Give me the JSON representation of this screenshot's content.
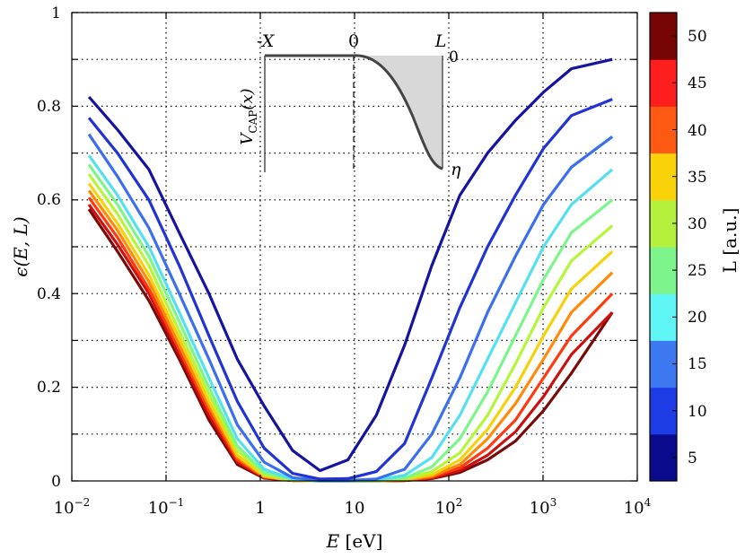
{
  "chart_data": {
    "type": "line",
    "xscale": "log",
    "xlim": [
      0.01,
      10000
    ],
    "ylim": [
      0,
      1
    ],
    "x_tick_labels": [
      {
        "base": "10",
        "exp": "−2",
        "value": 0.01
      },
      {
        "base": "10",
        "exp": "−1",
        "value": 0.1
      },
      {
        "base": "1",
        "exp": "",
        "value": 1
      },
      {
        "base": "10",
        "exp": "",
        "value": 10
      },
      {
        "base": "10",
        "exp": "2",
        "value": 100
      },
      {
        "base": "10",
        "exp": "3",
        "value": 1000
      },
      {
        "base": "10",
        "exp": "4",
        "value": 10000
      }
    ],
    "y_tick_labels": [
      {
        "label": "0",
        "value": 0
      },
      {
        "label": "0.2",
        "value": 0.2
      },
      {
        "label": "0.4",
        "value": 0.4
      },
      {
        "label": "0.6",
        "value": 0.6
      },
      {
        "label": "0.8",
        "value": 0.8
      },
      {
        "label": "1",
        "value": 1
      }
    ],
    "xlabel": {
      "symbol": "E",
      "unit": "[eV]"
    },
    "ylabel": "ϵ(E, L)",
    "grid": true,
    "x": [
      0.0152,
      0.0305,
      0.0658,
      0.138,
      0.285,
      0.57,
      1.1,
      2.2,
      4.3,
      8.5,
      17,
      34,
      66,
      131,
      258,
      510,
      1010,
      2000,
      5440
    ],
    "series": [
      {
        "name": "L = 5 a.u.",
        "L": 5,
        "color": "#1414a0",
        "values": [
          0.82,
          0.75,
          0.665,
          0.53,
          0.4,
          0.26,
          0.16,
          0.065,
          0.022,
          0.045,
          0.14,
          0.29,
          0.46,
          0.61,
          0.7,
          0.77,
          0.83,
          0.88,
          0.9
        ]
      },
      {
        "name": "L = 10 a.u.",
        "L": 10,
        "color": "#2233d6",
        "values": [
          0.775,
          0.7,
          0.6,
          0.46,
          0.31,
          0.17,
          0.07,
          0.016,
          0.004,
          0.005,
          0.02,
          0.08,
          0.22,
          0.37,
          0.5,
          0.61,
          0.71,
          0.78,
          0.815
        ]
      },
      {
        "name": "L = 15 a.u.",
        "L": 15,
        "color": "#3a6ff0",
        "values": [
          0.74,
          0.65,
          0.54,
          0.4,
          0.26,
          0.12,
          0.04,
          0.007,
          0.001,
          0.001,
          0.004,
          0.025,
          0.1,
          0.22,
          0.36,
          0.48,
          0.59,
          0.67,
          0.735
        ]
      },
      {
        "name": "L = 20 a.u.",
        "L": 20,
        "color": "#55e0f0",
        "values": [
          0.695,
          0.61,
          0.5,
          0.36,
          0.22,
          0.09,
          0.025,
          0.004,
          0,
          0,
          0.002,
          0.012,
          0.05,
          0.14,
          0.26,
          0.38,
          0.5,
          0.59,
          0.665
        ]
      },
      {
        "name": "L = 25 a.u.",
        "L": 25,
        "color": "#7cf58a",
        "values": [
          0.675,
          0.59,
          0.48,
          0.34,
          0.2,
          0.075,
          0.018,
          0.003,
          0,
          0,
          0.001,
          0.006,
          0.03,
          0.09,
          0.19,
          0.31,
          0.43,
          0.53,
          0.6
        ]
      },
      {
        "name": "L = 30 a.u.",
        "L": 30,
        "color": "#b5f53a",
        "values": [
          0.655,
          0.57,
          0.46,
          0.32,
          0.185,
          0.065,
          0.014,
          0.002,
          0,
          0,
          0,
          0.004,
          0.02,
          0.06,
          0.14,
          0.25,
          0.37,
          0.47,
          0.545
        ]
      },
      {
        "name": "L = 35 a.u.",
        "L": 35,
        "color": "#f5d20a",
        "values": [
          0.635,
          0.55,
          0.44,
          0.305,
          0.17,
          0.055,
          0.011,
          0.001,
          0,
          0,
          0,
          0.003,
          0.013,
          0.045,
          0.11,
          0.2,
          0.31,
          0.41,
          0.49
        ]
      },
      {
        "name": "L = 40 a.u.",
        "L": 40,
        "color": "#ff8a0a",
        "values": [
          0.62,
          0.535,
          0.425,
          0.29,
          0.16,
          0.05,
          0.009,
          0.001,
          0,
          0,
          0,
          0.002,
          0.01,
          0.035,
          0.09,
          0.165,
          0.26,
          0.36,
          0.445
        ]
      },
      {
        "name": "L = 45 a.u.",
        "L": 45,
        "color": "#ff3a10",
        "values": [
          0.605,
          0.52,
          0.41,
          0.28,
          0.15,
          0.045,
          0.008,
          0.001,
          0,
          0,
          0,
          0.001,
          0.008,
          0.028,
          0.07,
          0.13,
          0.22,
          0.31,
          0.4
        ]
      },
      {
        "name": "L = 50 a.u.",
        "L": 50,
        "color": "#cc1010",
        "values": [
          0.59,
          0.505,
          0.4,
          0.27,
          0.14,
          0.04,
          0.007,
          0.001,
          0,
          0,
          0,
          0.001,
          0.006,
          0.022,
          0.055,
          0.105,
          0.18,
          0.27,
          0.36
        ]
      },
      {
        "name": "L = 52.5 a.u.",
        "L": 52.5,
        "color": "#7a0a0a",
        "values": [
          0.58,
          0.49,
          0.385,
          0.26,
          0.13,
          0.035,
          0.006,
          0.001,
          0,
          0,
          0,
          0.001,
          0.005,
          0.018,
          0.045,
          0.085,
          0.15,
          0.23,
          0.36
        ]
      }
    ],
    "colorbar": {
      "label": "L [a.u.]",
      "range": [
        2.5,
        52.5
      ],
      "tick_labels": [
        {
          "label": "5",
          "value": 5
        },
        {
          "label": "10",
          "value": 10
        },
        {
          "label": "15",
          "value": 15
        },
        {
          "label": "20",
          "value": 20
        },
        {
          "label": "25",
          "value": 25
        },
        {
          "label": "30",
          "value": 30
        },
        {
          "label": "35",
          "value": 35
        },
        {
          "label": "40",
          "value": 40
        },
        {
          "label": "45",
          "value": 45
        },
        {
          "label": "50",
          "value": 50
        }
      ],
      "bands": [
        {
          "from": 2.5,
          "to": 7.5,
          "color": "#0a0a8c"
        },
        {
          "from": 7.5,
          "to": 12.5,
          "color": "#1e3ce6"
        },
        {
          "from": 12.5,
          "to": 17.5,
          "color": "#3c78f0"
        },
        {
          "from": 17.5,
          "to": 22.5,
          "color": "#5ff5f5"
        },
        {
          "from": 22.5,
          "to": 27.5,
          "color": "#7df58c"
        },
        {
          "from": 27.5,
          "to": 32.5,
          "color": "#b4f03c"
        },
        {
          "from": 32.5,
          "to": 37.5,
          "color": "#fad20a"
        },
        {
          "from": 37.5,
          "to": 42.5,
          "color": "#ff5a14"
        },
        {
          "from": 42.5,
          "to": 47.5,
          "color": "#ff1e1e"
        },
        {
          "from": 47.5,
          "to": 52.5,
          "color": "#780505"
        }
      ]
    },
    "inset": {
      "ylabel": "V",
      "ylabel_sub": "CAP",
      "ylabel_arg": "(x)",
      "label_minus_x": "-X",
      "label_zero_top": "0",
      "label_L": "L",
      "label_zero_right": "0",
      "label_eta": "η"
    }
  }
}
